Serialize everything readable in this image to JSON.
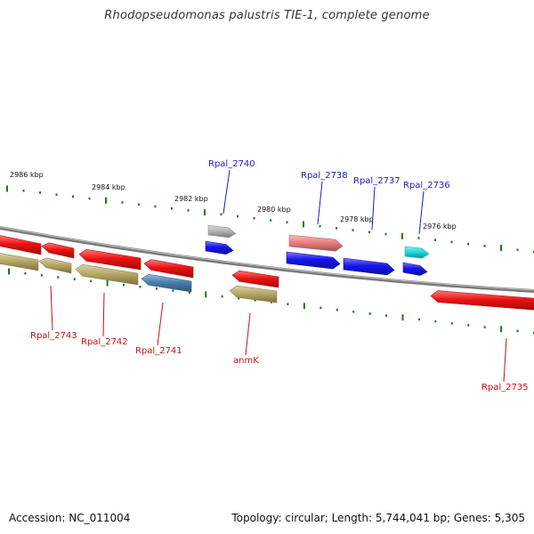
{
  "title": "Rhodopseudomonas palustris TIE-1, complete genome",
  "footer": {
    "accession": "Accession: NC_011004",
    "summary": "Topology: circular; Length: 5,744,041 bp; Genes: 5,305"
  },
  "colors": {
    "backbone": "#7a7a7a",
    "tick": "#1a7a1a",
    "label_blue": "#1a1acc",
    "label_red": "#cc1111"
  },
  "scale_labels": [
    "2986 kbp",
    "2984 kbp",
    "2982 kbp",
    "2980 kbp",
    "2978 kbp",
    "2976 kbp"
  ],
  "genes": [
    {
      "id": "g1",
      "label": "",
      "strand": "-",
      "color": "#ee1111"
    },
    {
      "id": "g2",
      "label": "",
      "strand": "-",
      "color": "#ee1111"
    },
    {
      "id": "g3",
      "label": "",
      "strand": "-",
      "color": "#ee1111"
    },
    {
      "id": "g4",
      "label": "",
      "strand": "-",
      "color": "#ee1111"
    },
    {
      "id": "g5",
      "label": "",
      "strand": "-",
      "color": "#b8aa66"
    },
    {
      "id": "g6",
      "label": "Rpal_2743",
      "strand": "-",
      "color": "#b8aa66"
    },
    {
      "id": "g7",
      "label": "Rpal_2742",
      "strand": "-",
      "color": "#b8aa66"
    },
    {
      "id": "g8",
      "label": "Rpal_2741",
      "strand": "-",
      "color": "#4a7fb0"
    },
    {
      "id": "g9",
      "label": "Rpal_2740",
      "strand": "+",
      "color": "#b8b8b8"
    },
    {
      "id": "g10",
      "label": "",
      "strand": "+",
      "color": "#1515ee"
    },
    {
      "id": "g11",
      "label": "",
      "strand": "-",
      "color": "#ee1111"
    },
    {
      "id": "g12",
      "label": "anmK",
      "strand": "-",
      "color": "#b8aa66"
    },
    {
      "id": "g13",
      "label": "Rpal_2738",
      "strand": "+",
      "color": "#ee8080"
    },
    {
      "id": "g14",
      "label": "",
      "strand": "+",
      "color": "#1515ee"
    },
    {
      "id": "g15",
      "label": "Rpal_2737",
      "strand": "+",
      "color": "#1515ee"
    },
    {
      "id": "g16",
      "label": "Rpal_2736",
      "strand": "+",
      "color": "#22dddd"
    },
    {
      "id": "g17",
      "label": "",
      "strand": "+",
      "color": "#1515ee"
    },
    {
      "id": "g18",
      "label": "Rpal_2735",
      "strand": "-",
      "color": "#ee1111"
    }
  ]
}
